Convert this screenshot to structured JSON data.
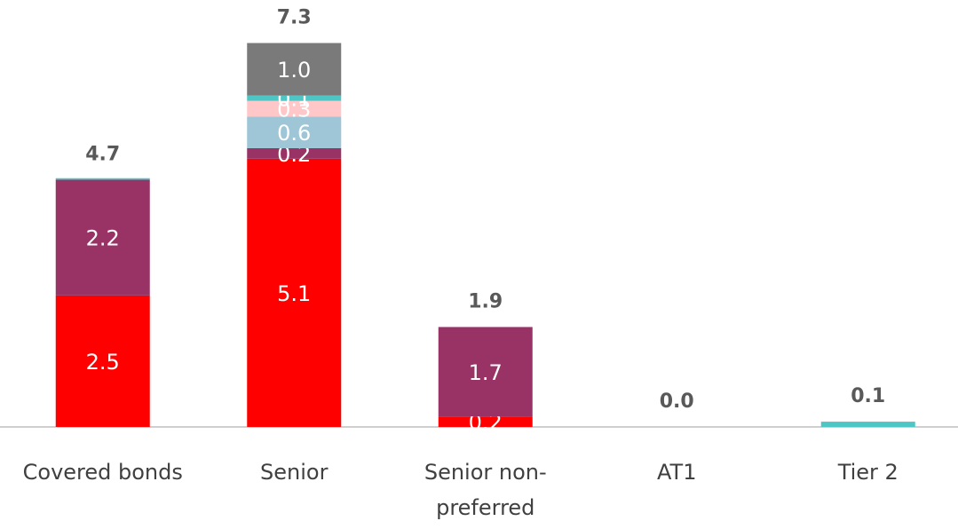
{
  "chart_data": {
    "type": "stacked_bar",
    "categories": [
      "Covered bonds",
      "Senior",
      "Senior non-preferred",
      "AT1",
      "Tier 2"
    ],
    "series": [
      {
        "color": "#ff0000",
        "values": [
          2.5,
          5.1,
          0.2,
          0,
          0
        ],
        "value_labels": [
          "2.5",
          "5.1",
          "0.2",
          null,
          null
        ]
      },
      {
        "color": "#993366",
        "values": [
          2.2,
          0.2,
          1.7,
          0,
          0
        ],
        "value_labels": [
          "2.2",
          "0.2",
          "1.7",
          null,
          null
        ]
      },
      {
        "color": "#9ec6d6",
        "values": [
          0,
          0.6,
          0,
          0,
          0
        ],
        "value_labels": [
          null,
          "0.6",
          null,
          null,
          null
        ]
      },
      {
        "color": "#ffc7c7",
        "values": [
          0,
          0.3,
          0,
          0,
          0
        ],
        "value_labels": [
          null,
          "0.3",
          null,
          null,
          null
        ]
      },
      {
        "color": "#4fc6c6",
        "values": [
          0.03,
          0.1,
          0,
          0,
          0.1
        ],
        "value_labels": [
          null,
          "0.1",
          null,
          null,
          null
        ]
      },
      {
        "color": "#7a7a7a",
        "values": [
          0,
          1.0,
          0,
          0,
          0
        ],
        "value_labels": [
          null,
          "1.0",
          null,
          null,
          null
        ]
      }
    ],
    "totals": {
      "values": [
        4.7,
        7.3,
        1.9,
        0,
        0.1
      ],
      "value_labels": [
        "4.7",
        "7.3",
        "1.9",
        "0.0",
        "0.1"
      ]
    },
    "ylim": [
      0,
      8
    ]
  }
}
